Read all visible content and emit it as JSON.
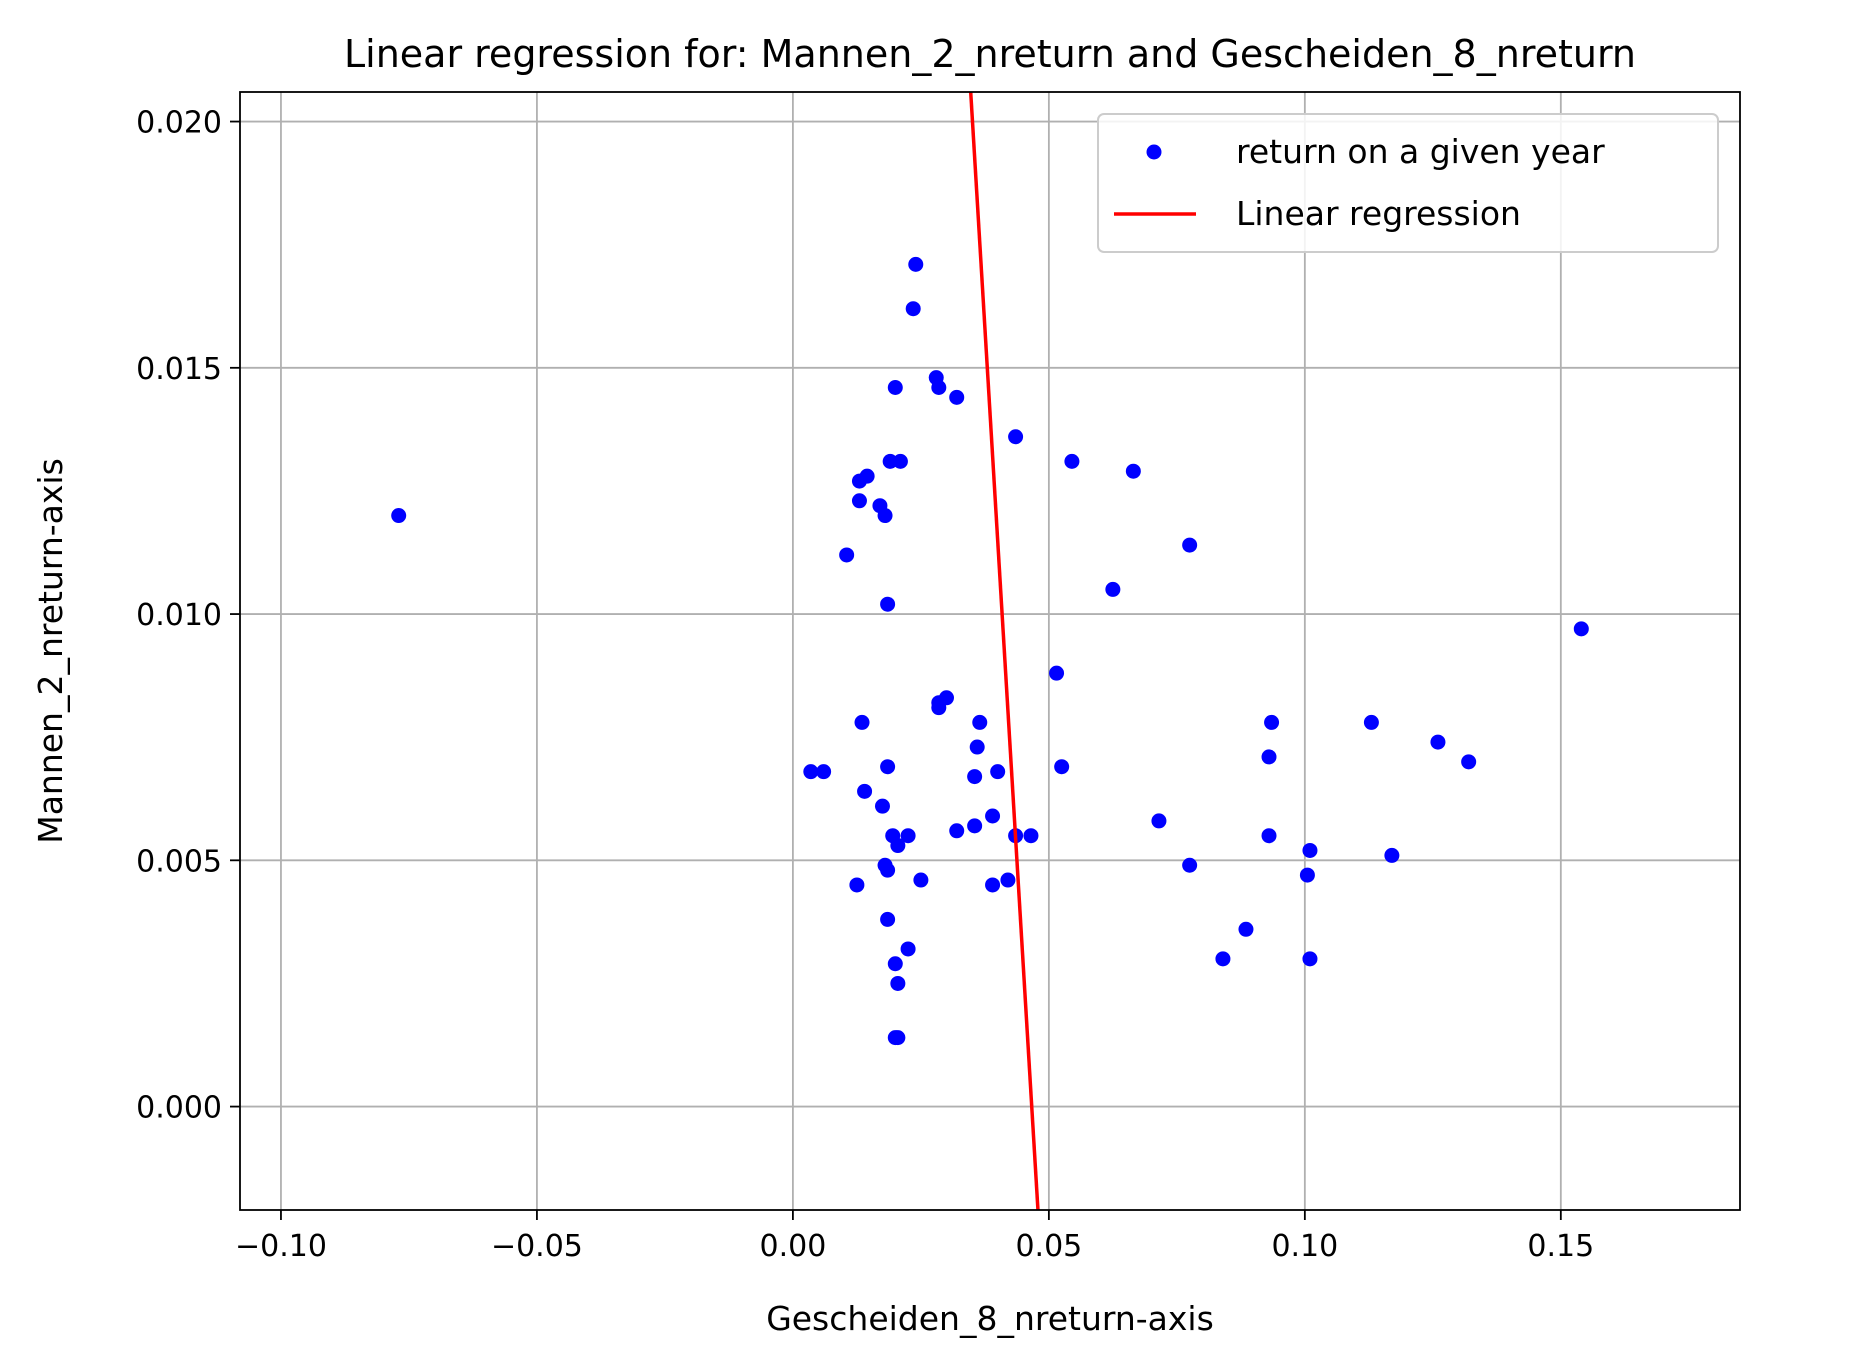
{
  "chart_data": {
    "type": "scatter",
    "title": "Linear regression for: Mannen_2_nreturn and Gescheiden_8_nreturn",
    "xlabel": "Gescheiden_8_nreturn-axis",
    "ylabel": "Mannen_2_nreturn-axis",
    "xlim": [
      -0.108,
      0.185
    ],
    "ylim": [
      -0.0021,
      0.0206
    ],
    "x_ticks": [
      -0.1,
      -0.05,
      0.0,
      0.05,
      0.1,
      0.15
    ],
    "x_tick_labels": [
      "−0.10",
      "−0.05",
      "0.00",
      "0.05",
      "0.10",
      "0.15"
    ],
    "y_ticks": [
      0.0,
      0.005,
      0.01,
      0.015,
      0.02
    ],
    "y_tick_labels": [
      "0.000",
      "0.005",
      "0.010",
      "0.015",
      "0.020"
    ],
    "grid": true,
    "legend": {
      "placement": "top-right",
      "entries": [
        {
          "label": "return on a given year",
          "kind": "marker",
          "color": "#0000ff"
        },
        {
          "label": "Linear regression",
          "kind": "line",
          "color": "#ff0000"
        }
      ]
    },
    "series": [
      {
        "name": "return on a given year",
        "kind": "scatter",
        "color": "#0000ff",
        "points": [
          [
            -0.077,
            0.012
          ],
          [
            0.0035,
            0.0068
          ],
          [
            0.006,
            0.0068
          ],
          [
            0.0105,
            0.0112
          ],
          [
            0.0125,
            0.0045
          ],
          [
            0.013,
            0.0127
          ],
          [
            0.0145,
            0.0128
          ],
          [
            0.013,
            0.0123
          ],
          [
            0.0135,
            0.0078
          ],
          [
            0.014,
            0.0064
          ],
          [
            0.017,
            0.0122
          ],
          [
            0.018,
            0.012
          ],
          [
            0.0185,
            0.0102
          ],
          [
            0.0175,
            0.0061
          ],
          [
            0.0185,
            0.0069
          ],
          [
            0.019,
            0.0131
          ],
          [
            0.021,
            0.0131
          ],
          [
            0.02,
            0.0146
          ],
          [
            0.0235,
            0.0162
          ],
          [
            0.024,
            0.0171
          ],
          [
            0.028,
            0.0148
          ],
          [
            0.0285,
            0.0146
          ],
          [
            0.032,
            0.0144
          ],
          [
            0.0285,
            0.0082
          ],
          [
            0.03,
            0.0083
          ],
          [
            0.0285,
            0.0081
          ],
          [
            0.0365,
            0.0078
          ],
          [
            0.036,
            0.0073
          ],
          [
            0.0355,
            0.0067
          ],
          [
            0.04,
            0.0068
          ],
          [
            0.0195,
            0.0055
          ],
          [
            0.0205,
            0.0053
          ],
          [
            0.0225,
            0.0055
          ],
          [
            0.018,
            0.0049
          ],
          [
            0.0185,
            0.0048
          ],
          [
            0.025,
            0.0046
          ],
          [
            0.0185,
            0.0038
          ],
          [
            0.0225,
            0.0032
          ],
          [
            0.02,
            0.0029
          ],
          [
            0.0205,
            0.0025
          ],
          [
            0.02,
            0.0014
          ],
          [
            0.0205,
            0.0014
          ],
          [
            0.032,
            0.0056
          ],
          [
            0.0355,
            0.0057
          ],
          [
            0.039,
            0.0059
          ],
          [
            0.039,
            0.0045
          ],
          [
            0.042,
            0.0046
          ],
          [
            0.0435,
            0.0055
          ],
          [
            0.0465,
            0.0055
          ],
          [
            0.0435,
            0.0136
          ],
          [
            0.0545,
            0.0131
          ],
          [
            0.0665,
            0.0129
          ],
          [
            0.0625,
            0.0105
          ],
          [
            0.0775,
            0.0114
          ],
          [
            0.0515,
            0.0088
          ],
          [
            0.0525,
            0.0069
          ],
          [
            0.0715,
            0.0058
          ],
          [
            0.0775,
            0.0049
          ],
          [
            0.084,
            0.003
          ],
          [
            0.0885,
            0.0036
          ],
          [
            0.093,
            0.0071
          ],
          [
            0.0935,
            0.0078
          ],
          [
            0.093,
            0.0055
          ],
          [
            0.1005,
            0.0047
          ],
          [
            0.101,
            0.0052
          ],
          [
            0.101,
            0.003
          ],
          [
            0.113,
            0.0078
          ],
          [
            0.117,
            0.0051
          ],
          [
            0.126,
            0.0074
          ],
          [
            0.132,
            0.007
          ],
          [
            0.154,
            0.0097
          ]
        ]
      },
      {
        "name": "Linear regression",
        "kind": "line",
        "color": "#ff0000",
        "points": [
          [
            0.0345,
            0.021
          ],
          [
            0.0481,
            -0.0025
          ]
        ]
      }
    ]
  }
}
